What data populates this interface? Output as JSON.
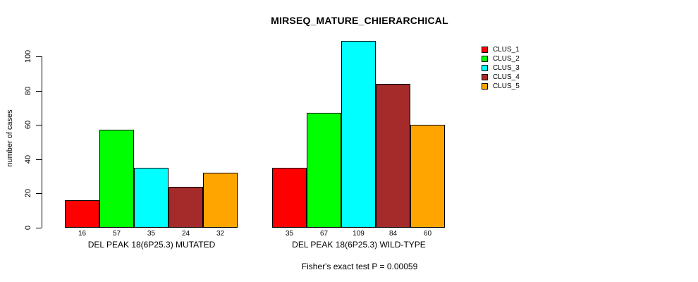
{
  "chart_data": {
    "type": "bar",
    "title": "MIRSEQ_MATURE_CHIERARCHICAL",
    "ylabel": "number of cases",
    "xlabel": "",
    "annotation": "Fisher's exact test P = 0.00059",
    "ylim": [
      0,
      110
    ],
    "yticks": [
      0,
      20,
      40,
      60,
      80,
      100
    ],
    "grid": false,
    "legend_position": "top-right",
    "background_color": "#FFFFFF",
    "axis_color": "#000000",
    "categories": [
      "DEL PEAK 18(6P25.3) MUTATED",
      "DEL PEAK 18(6P25.3) WILD-TYPE"
    ],
    "series": [
      {
        "name": "CLUS_1",
        "color": "#FF0000",
        "values": [
          16,
          35
        ]
      },
      {
        "name": "CLUS_2",
        "color": "#00FF00",
        "values": [
          57,
          67
        ]
      },
      {
        "name": "CLUS_3",
        "color": "#00FFFF",
        "values": [
          35,
          109
        ]
      },
      {
        "name": "CLUS_4",
        "color": "#A52A2A",
        "values": [
          24,
          84
        ]
      },
      {
        "name": "CLUS_5",
        "color": "#FFA500",
        "values": [
          32,
          60
        ]
      }
    ]
  }
}
